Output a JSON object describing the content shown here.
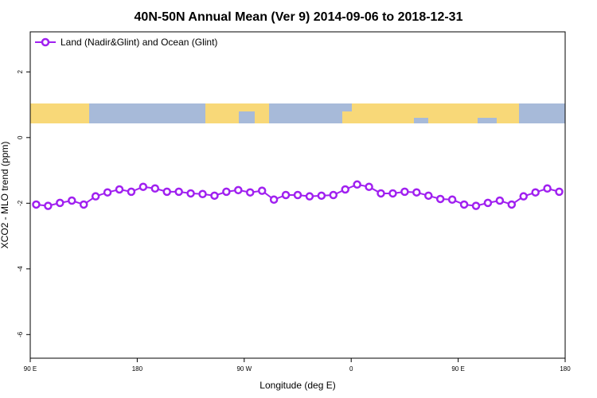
{
  "chart_data": {
    "type": "line",
    "title": "40N-50N Annual Mean (Ver 9)   2014-09-06 to 2018-12-31",
    "x_label": "Longitude (deg E)",
    "y_label": "XCO2 - MLO trend (ppm)",
    "xlim": [
      90,
      540
    ],
    "ylim": [
      -6.72,
      3.22
    ],
    "xticks": [
      {
        "value": 90,
        "label": "90 E"
      },
      180,
      {
        "value": 270,
        "label": "90 W"
      },
      {
        "value": 360,
        "label": "0"
      },
      {
        "value": 450,
        "label": "90 E"
      },
      {
        "value": 540,
        "label": "180"
      }
    ],
    "yticks": [
      -6,
      -4,
      -2,
      0,
      2
    ],
    "grid": false,
    "legend_position": "top-left",
    "x": [
      95,
      105,
      115,
      125,
      135,
      145,
      155,
      165,
      175,
      185,
      195,
      205,
      215,
      225,
      235,
      245,
      255,
      265,
      275,
      285,
      295,
      305,
      315,
      325,
      335,
      345,
      355,
      365,
      375,
      385,
      395,
      405,
      415,
      425,
      435,
      445,
      455,
      465,
      475,
      485,
      495,
      505,
      515,
      525,
      535
    ],
    "series": [
      {
        "name": "Land (Nadir&Glint) and Ocean (Glint)",
        "color": "#a020f0",
        "values": [
          -2.04,
          -2.08,
          -1.99,
          -1.92,
          -2.04,
          -1.79,
          -1.67,
          -1.58,
          -1.65,
          -1.5,
          -1.55,
          -1.65,
          -1.65,
          -1.7,
          -1.72,
          -1.77,
          -1.65,
          -1.6,
          -1.67,
          -1.62,
          -1.89,
          -1.75,
          -1.75,
          -1.79,
          -1.77,
          -1.75,
          -1.58,
          -1.43,
          -1.5,
          -1.7,
          -1.7,
          -1.65,
          -1.67,
          -1.77,
          -1.87,
          -1.89,
          -2.04,
          -2.08,
          -1.99,
          -1.92,
          -2.04,
          -1.79,
          -1.67,
          -1.55,
          -1.65
        ]
      }
    ]
  }
}
